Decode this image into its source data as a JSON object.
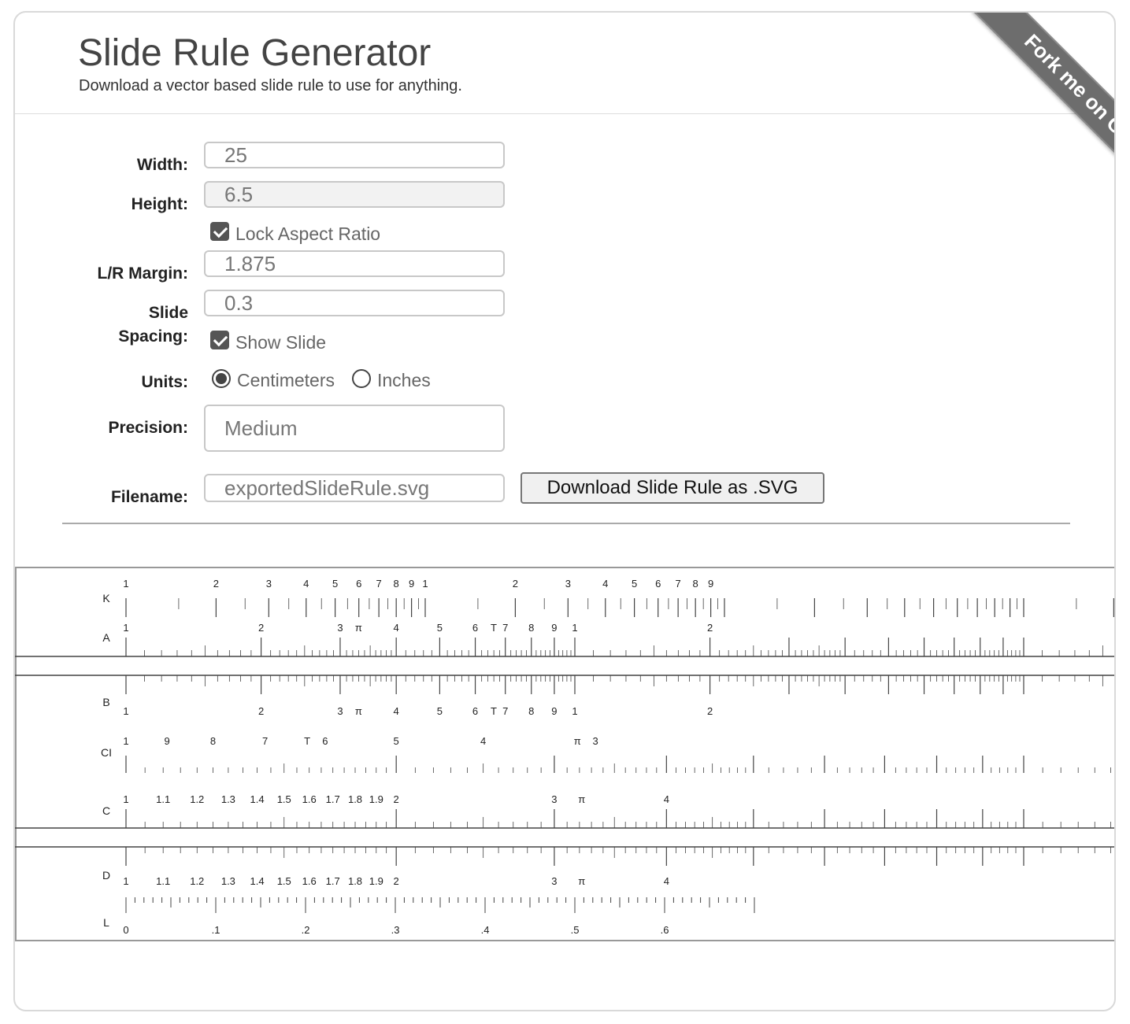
{
  "header": {
    "title": "Slide Rule Generator",
    "subtitle": "Download a vector based slide rule to use for anything."
  },
  "ribbon": {
    "text": "Fork me on GitHub"
  },
  "form": {
    "width": {
      "label": "Width:",
      "value": "25"
    },
    "height": {
      "label": "Height:",
      "value": "6.5"
    },
    "lock_aspect": {
      "label": "Lock Aspect Ratio",
      "checked": true
    },
    "lr_margin": {
      "label": "L/R Margin:",
      "value": "1.875"
    },
    "slide_spacing": {
      "label_line1": "Slide",
      "label_line2": "Spacing:",
      "value": "0.3"
    },
    "show_slide": {
      "label": "Show Slide",
      "checked": true
    },
    "units": {
      "label": "Units:",
      "options": [
        "Centimeters",
        "Inches"
      ],
      "selected": "Centimeters"
    },
    "precision": {
      "label": "Precision:",
      "value": "Medium"
    },
    "filename": {
      "label": "Filename:",
      "value": "exportedSlideRule.svg"
    },
    "download_button": "Download Slide Rule as .SVG"
  },
  "slide_rule": {
    "scale_labels": [
      "K",
      "A",
      "B",
      "CI",
      "C",
      "D",
      "L"
    ],
    "k_labels": [
      "1",
      "2",
      "3",
      "4",
      "5",
      "6",
      "7",
      "8",
      "9",
      "1",
      "2",
      "3",
      "4",
      "5",
      "6",
      "7",
      "8",
      "9"
    ],
    "ab_labels": [
      "1",
      "2",
      "3",
      "π",
      "4",
      "5",
      "6",
      "T",
      "7",
      "8",
      "9",
      "1",
      "2"
    ],
    "ci_labels": [
      "1",
      "9",
      "8",
      "7",
      "T",
      "6",
      "5",
      "4",
      "π",
      "3"
    ],
    "cd_labels": [
      "1",
      "1.1",
      "1.2",
      "1.3",
      "1.4",
      "1.5",
      "1.6",
      "1.7",
      "1.8",
      "1.9",
      "2",
      "3",
      "π",
      "4"
    ],
    "l_labels": [
      "0",
      ".1",
      ".2",
      ".3",
      ".4",
      ".5",
      ".6"
    ]
  }
}
